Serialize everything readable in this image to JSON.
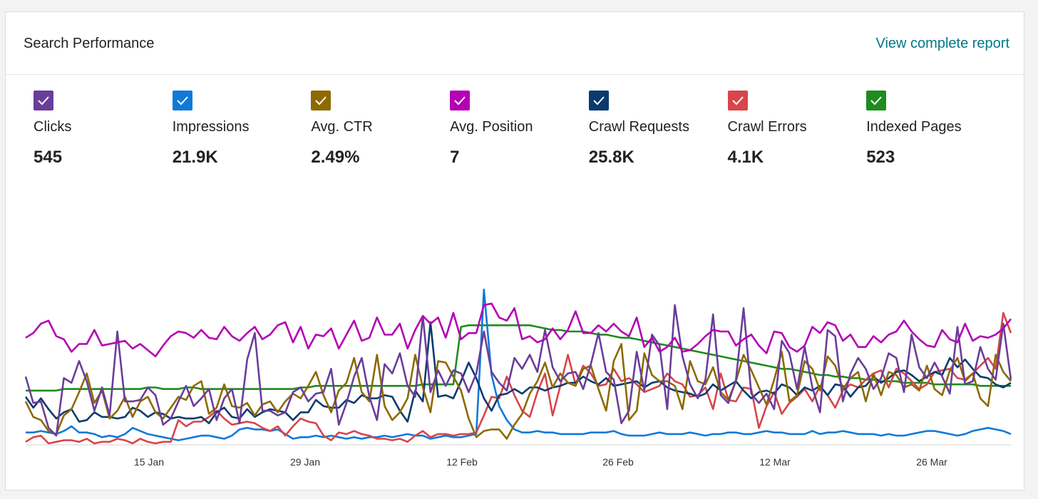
{
  "header": {
    "title": "Search Performance",
    "link": "View complete report"
  },
  "metrics": [
    {
      "label": "Clicks",
      "value": "545",
      "color": "#6a3d9a"
    },
    {
      "label": "Impressions",
      "value": "21.9K",
      "color": "#1079d8"
    },
    {
      "label": "Avg. CTR",
      "value": "2.49%",
      "color": "#8c6a00"
    },
    {
      "label": "Avg. Position",
      "value": "7",
      "color": "#b400b4"
    },
    {
      "label": "Crawl Requests",
      "value": "25.8K",
      "color": "#0a3a6e"
    },
    {
      "label": "Crawl Errors",
      "value": "4.1K",
      "color": "#d8454a"
    },
    {
      "label": "Indexed Pages",
      "value": "523",
      "color": "#1e8c1e"
    }
  ],
  "chart_data": {
    "type": "line",
    "x_start": "2022-01-01",
    "x_ticks": [
      "15 Jan",
      "29 Jan",
      "12 Feb",
      "26 Feb",
      "12 Mar",
      "26 Mar"
    ],
    "grid": false,
    "series": [
      {
        "name": "Clicks",
        "color": "#6a3d9a",
        "values": [
          0.43,
          0.26,
          0.27,
          0.1,
          0.05,
          0.42,
          0.39,
          0.53,
          0.4,
          0.21,
          0.36,
          0.18,
          0.72,
          0.27,
          0.27,
          0.28,
          0.36,
          0.31,
          0.12,
          0.16,
          0.27,
          0.37,
          0.24,
          0.29,
          0.35,
          0.15,
          0.29,
          0.35,
          0.13,
          0.54,
          0.71,
          0.21,
          0.21,
          0.18,
          0.2,
          0.33,
          0.36,
          0.27,
          0.32,
          0.33,
          0.48,
          0.12,
          0.26,
          0.43,
          0.55,
          0.3,
          0.15,
          0.51,
          0.45,
          0.58,
          0.37,
          0.3,
          0.82,
          0.33,
          0.47,
          0.37,
          0.47,
          0.45,
          0.33,
          0.45,
          0.72,
          0.46,
          0.39,
          0.34,
          0.55,
          0.48,
          0.57,
          0.46,
          0.73,
          0.49,
          0.4,
          0.45,
          0.46,
          0.35,
          0.51,
          0.71,
          0.46,
          0.41,
          0.13,
          0.21,
          0.59,
          0.34,
          0.7,
          0.63,
          0.22,
          0.89,
          0.56,
          0.38,
          0.29,
          0.41,
          0.83,
          0.31,
          0.26,
          0.41,
          0.87,
          0.32,
          0.26,
          0.32,
          0.22,
          0.66,
          0.58,
          0.35,
          0.62,
          0.36,
          0.2,
          0.73,
          0.69,
          0.27,
          0.45,
          0.55,
          0.48,
          0.35,
          0.42,
          0.58,
          0.55,
          0.33,
          0.7,
          0.49,
          0.42,
          0.52,
          0.43,
          0.32,
          0.75,
          0.38,
          0.4,
          0.62,
          0.48,
          0.41,
          0.77,
          0.41
        ]
      },
      {
        "name": "Impressions",
        "color": "#1079d8",
        "values": [
          0.07,
          0.07,
          0.08,
          0.07,
          0.06,
          0.08,
          0.11,
          0.07,
          0.07,
          0.06,
          0.04,
          0.05,
          0.04,
          0.06,
          0.1,
          0.08,
          0.06,
          0.05,
          0.04,
          0.03,
          0.02,
          0.03,
          0.04,
          0.05,
          0.05,
          0.04,
          0.03,
          0.05,
          0.09,
          0.1,
          0.09,
          0.09,
          0.08,
          0.09,
          0.06,
          0.03,
          0.04,
          0.04,
          0.05,
          0.04,
          0.05,
          0.04,
          0.03,
          0.04,
          0.03,
          0.04,
          0.04,
          0.05,
          0.04,
          0.05,
          0.06,
          0.05,
          0.05,
          0.03,
          0.04,
          0.05,
          0.04,
          0.04,
          0.05,
          0.06,
          0.99,
          0.44,
          0.24,
          0.15,
          0.09,
          0.07,
          0.07,
          0.08,
          0.07,
          0.07,
          0.06,
          0.06,
          0.06,
          0.06,
          0.07,
          0.07,
          0.07,
          0.08,
          0.06,
          0.05,
          0.05,
          0.05,
          0.06,
          0.07,
          0.06,
          0.06,
          0.06,
          0.07,
          0.06,
          0.05,
          0.06,
          0.06,
          0.07,
          0.07,
          0.06,
          0.06,
          0.07,
          0.08,
          0.07,
          0.07,
          0.06,
          0.06,
          0.06,
          0.08,
          0.06,
          0.07,
          0.07,
          0.08,
          0.07,
          0.06,
          0.06,
          0.06,
          0.05,
          0.06,
          0.05,
          0.05,
          0.06,
          0.07,
          0.08,
          0.08,
          0.07,
          0.06,
          0.05,
          0.06,
          0.08,
          0.09,
          0.1,
          0.09,
          0.08,
          0.06
        ]
      },
      {
        "name": "Avg. CTR",
        "color": "#8c6a00",
        "values": [
          0.27,
          0.17,
          0.15,
          0.08,
          0.06,
          0.18,
          0.22,
          0.33,
          0.45,
          0.26,
          0.34,
          0.16,
          0.21,
          0.3,
          0.17,
          0.27,
          0.3,
          0.2,
          0.16,
          0.23,
          0.3,
          0.28,
          0.37,
          0.4,
          0.19,
          0.23,
          0.38,
          0.24,
          0.23,
          0.26,
          0.18,
          0.25,
          0.27,
          0.2,
          0.27,
          0.32,
          0.29,
          0.37,
          0.46,
          0.31,
          0.2,
          0.34,
          0.39,
          0.55,
          0.33,
          0.27,
          0.57,
          0.24,
          0.15,
          0.2,
          0.29,
          0.57,
          0.36,
          0.2,
          0.53,
          0.52,
          0.43,
          0.34,
          0.16,
          0.04,
          0.08,
          0.09,
          0.09,
          0.03,
          0.12,
          0.19,
          0.32,
          0.4,
          0.52,
          0.36,
          0.45,
          0.39,
          0.37,
          0.48,
          0.5,
          0.35,
          0.21,
          0.53,
          0.64,
          0.15,
          0.21,
          0.58,
          0.44,
          0.4,
          0.4,
          0.37,
          0.22,
          0.53,
          0.4,
          0.38,
          0.49,
          0.33,
          0.28,
          0.4,
          0.57,
          0.47,
          0.36,
          0.25,
          0.41,
          0.59,
          0.27,
          0.31,
          0.53,
          0.48,
          0.34,
          0.56,
          0.5,
          0.35,
          0.42,
          0.46,
          0.27,
          0.45,
          0.31,
          0.46,
          0.44,
          0.36,
          0.38,
          0.34,
          0.5,
          0.35,
          0.31,
          0.47,
          0.55,
          0.4,
          0.45,
          0.29,
          0.24,
          0.57,
          0.46,
          0.4
        ]
      },
      {
        "name": "Avg. Position",
        "color": "#b400b4",
        "values": [
          0.68,
          0.71,
          0.77,
          0.79,
          0.69,
          0.67,
          0.59,
          0.64,
          0.64,
          0.73,
          0.63,
          0.64,
          0.65,
          0.66,
          0.61,
          0.64,
          0.6,
          0.56,
          0.63,
          0.69,
          0.72,
          0.71,
          0.68,
          0.73,
          0.68,
          0.67,
          0.75,
          0.69,
          0.66,
          0.71,
          0.75,
          0.67,
          0.7,
          0.76,
          0.78,
          0.65,
          0.75,
          0.61,
          0.7,
          0.69,
          0.74,
          0.61,
          0.7,
          0.79,
          0.66,
          0.68,
          0.81,
          0.7,
          0.7,
          0.77,
          0.61,
          0.73,
          0.82,
          0.77,
          0.81,
          0.68,
          0.84,
          0.67,
          0.71,
          0.71,
          0.89,
          0.9,
          0.81,
          0.79,
          0.87,
          0.67,
          0.69,
          0.65,
          0.67,
          0.74,
          0.67,
          0.73,
          0.85,
          0.71,
          0.71,
          0.76,
          0.72,
          0.77,
          0.72,
          0.69,
          0.81,
          0.62,
          0.68,
          0.59,
          0.62,
          0.68,
          0.59,
          0.6,
          0.64,
          0.69,
          0.73,
          0.72,
          0.72,
          0.63,
          0.67,
          0.7,
          0.63,
          0.58,
          0.72,
          0.71,
          0.62,
          0.59,
          0.63,
          0.75,
          0.71,
          0.78,
          0.76,
          0.66,
          0.7,
          0.62,
          0.62,
          0.69,
          0.65,
          0.7,
          0.72,
          0.79,
          0.72,
          0.67,
          0.63,
          0.62,
          0.73,
          0.67,
          0.65,
          0.77,
          0.66,
          0.69,
          0.68,
          0.7,
          0.74,
          0.8
        ]
      },
      {
        "name": "Crawl Requests",
        "color": "#0a3a6e",
        "values": [
          0.3,
          0.23,
          0.29,
          0.22,
          0.16,
          0.2,
          0.22,
          0.14,
          0.15,
          0.2,
          0.17,
          0.17,
          0.16,
          0.17,
          0.23,
          0.21,
          0.17,
          0.2,
          0.19,
          0.16,
          0.17,
          0.16,
          0.16,
          0.17,
          0.13,
          0.2,
          0.23,
          0.17,
          0.16,
          0.22,
          0.17,
          0.2,
          0.22,
          0.21,
          0.2,
          0.15,
          0.2,
          0.2,
          0.28,
          0.24,
          0.23,
          0.23,
          0.28,
          0.26,
          0.31,
          0.29,
          0.29,
          0.31,
          0.3,
          0.21,
          0.14,
          0.34,
          0.27,
          0.78,
          0.3,
          0.31,
          0.29,
          0.4,
          0.52,
          0.42,
          0.29,
          0.21,
          0.31,
          0.32,
          0.35,
          0.32,
          0.36,
          0.36,
          0.34,
          0.36,
          0.37,
          0.39,
          0.39,
          0.43,
          0.4,
          0.38,
          0.42,
          0.37,
          0.38,
          0.39,
          0.4,
          0.36,
          0.39,
          0.4,
          0.36,
          0.34,
          0.33,
          0.32,
          0.3,
          0.32,
          0.38,
          0.34,
          0.37,
          0.4,
          0.34,
          0.29,
          0.33,
          0.34,
          0.32,
          0.38,
          0.36,
          0.31,
          0.36,
          0.34,
          0.37,
          0.31,
          0.38,
          0.37,
          0.3,
          0.36,
          0.37,
          0.43,
          0.39,
          0.42,
          0.46,
          0.47,
          0.44,
          0.4,
          0.43,
          0.46,
          0.44,
          0.55,
          0.49,
          0.54,
          0.48,
          0.43,
          0.42,
          0.38,
          0.36,
          0.39
        ]
      },
      {
        "name": "Crawl Errors",
        "color": "#d8454a",
        "values": [
          0.01,
          0.04,
          0.05,
          0.0,
          0.01,
          0.02,
          0.02,
          0.01,
          0.03,
          0.0,
          0.01,
          0.01,
          0.03,
          0.02,
          0.0,
          0.03,
          0.01,
          0.0,
          0.01,
          0.01,
          0.15,
          0.11,
          0.14,
          0.14,
          0.17,
          0.21,
          0.16,
          0.12,
          0.13,
          0.14,
          0.13,
          0.1,
          0.08,
          0.11,
          0.05,
          0.11,
          0.16,
          0.14,
          0.13,
          0.05,
          0.02,
          0.07,
          0.06,
          0.08,
          0.06,
          0.05,
          0.03,
          0.03,
          0.02,
          0.03,
          0.01,
          0.05,
          0.08,
          0.04,
          0.06,
          0.06,
          0.05,
          0.06,
          0.06,
          0.07,
          0.18,
          0.3,
          0.29,
          0.43,
          0.31,
          0.21,
          0.17,
          0.33,
          0.45,
          0.18,
          0.37,
          0.57,
          0.38,
          0.5,
          0.45,
          0.37,
          0.38,
          0.48,
          0.4,
          0.42,
          0.38,
          0.33,
          0.35,
          0.37,
          0.45,
          0.4,
          0.38,
          0.3,
          0.31,
          0.36,
          0.22,
          0.45,
          0.28,
          0.27,
          0.36,
          0.35,
          0.1,
          0.24,
          0.33,
          0.19,
          0.26,
          0.3,
          0.35,
          0.27,
          0.37,
          0.31,
          0.23,
          0.34,
          0.38,
          0.36,
          0.41,
          0.45,
          0.47,
          0.36,
          0.48,
          0.45,
          0.4,
          0.35,
          0.38,
          0.46,
          0.47,
          0.48,
          0.42,
          0.41,
          0.45,
          0.5,
          0.55,
          0.48,
          0.84,
          0.71
        ]
      },
      {
        "name": "Indexed Pages",
        "color": "#1e8c1e",
        "values": [
          0.34,
          0.34,
          0.34,
          0.34,
          0.34,
          0.35,
          0.35,
          0.35,
          0.35,
          0.35,
          0.35,
          0.35,
          0.35,
          0.35,
          0.35,
          0.35,
          0.36,
          0.36,
          0.35,
          0.35,
          0.35,
          0.36,
          0.36,
          0.35,
          0.35,
          0.35,
          0.35,
          0.35,
          0.35,
          0.35,
          0.35,
          0.35,
          0.35,
          0.35,
          0.35,
          0.35,
          0.36,
          0.36,
          0.37,
          0.37,
          0.37,
          0.37,
          0.37,
          0.37,
          0.37,
          0.37,
          0.37,
          0.37,
          0.37,
          0.37,
          0.37,
          0.37,
          0.38,
          0.38,
          0.38,
          0.38,
          0.38,
          0.75,
          0.76,
          0.76,
          0.76,
          0.76,
          0.76,
          0.76,
          0.76,
          0.76,
          0.76,
          0.75,
          0.74,
          0.73,
          0.73,
          0.72,
          0.72,
          0.72,
          0.71,
          0.7,
          0.7,
          0.69,
          0.68,
          0.68,
          0.67,
          0.66,
          0.65,
          0.64,
          0.63,
          0.62,
          0.61,
          0.6,
          0.59,
          0.58,
          0.57,
          0.56,
          0.55,
          0.54,
          0.53,
          0.52,
          0.51,
          0.5,
          0.49,
          0.48,
          0.48,
          0.47,
          0.46,
          0.45,
          0.44,
          0.44,
          0.43,
          0.43,
          0.42,
          0.42,
          0.41,
          0.41,
          0.4,
          0.4,
          0.4,
          0.39,
          0.39,
          0.39,
          0.39,
          0.38,
          0.38,
          0.38,
          0.38,
          0.38,
          0.38,
          0.37,
          0.37,
          0.37,
          0.37,
          0.37
        ]
      }
    ]
  }
}
